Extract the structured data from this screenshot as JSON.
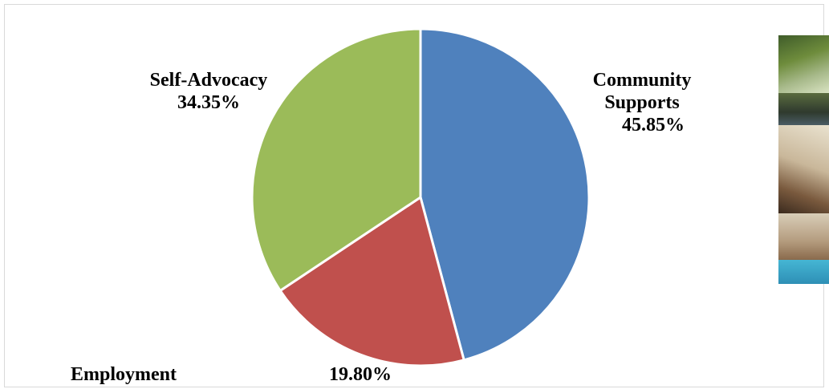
{
  "chart_data": {
    "type": "pie",
    "categories": [
      "Community Supports",
      "Employment",
      "Self-Advocacy"
    ],
    "values": [
      45.85,
      19.8,
      34.35
    ],
    "data_labels": [
      "45.85%",
      "19.80%",
      "34.35%"
    ],
    "label_lines": [
      [
        "Community",
        "Supports"
      ],
      [
        "Employment"
      ],
      [
        "Self-Advocacy"
      ]
    ],
    "colors": [
      "#4f81bd",
      "#c0504d",
      "#9bbb59"
    ],
    "start_angle_deg": 0,
    "direction": "clockwise",
    "legend": "none",
    "title": ""
  },
  "photo": {
    "description_icon": "photo-thumbnail"
  }
}
